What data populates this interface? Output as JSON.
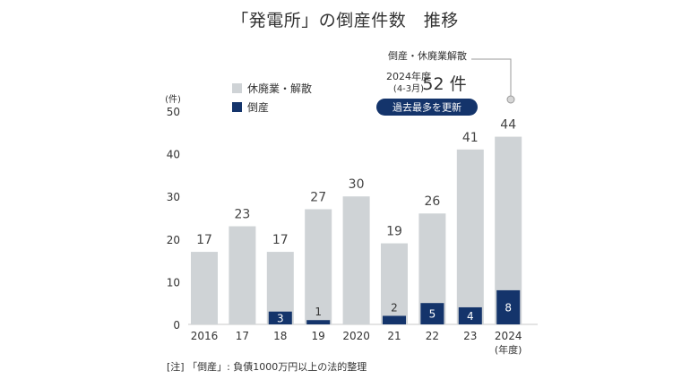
{
  "chart_data": {
    "type": "bar",
    "title": "「発電所」の倒産件数　推移",
    "ylabel": "(件)",
    "xlabel": "",
    "ylim": [
      0,
      50
    ],
    "y_ticks": [
      0,
      10,
      20,
      30,
      40,
      50
    ],
    "categories": [
      "2016",
      "17",
      "18",
      "19",
      "2020",
      "21",
      "22",
      "23",
      "2024"
    ],
    "x_unit_label": "(年度)",
    "grid": false,
    "legend_position": "top-left",
    "series": [
      {
        "name": "休廃業・解散",
        "color": "#cfd3d6",
        "values": [
          17,
          23,
          17,
          27,
          30,
          19,
          26,
          41,
          44
        ]
      },
      {
        "name": "倒産",
        "color": "#14346b",
        "values": [
          0,
          0,
          3,
          1,
          0,
          2,
          5,
          4,
          8
        ]
      }
    ],
    "annotation": {
      "leader_label": "倒産・休廃業解散",
      "period_label": "2024年度",
      "period_sub": "(4-3月)",
      "value_text": "52 件",
      "badge": "過去最多を更新"
    },
    "footnote": "[注] 「倒産」: 負債1000万円以上の法的整理"
  }
}
